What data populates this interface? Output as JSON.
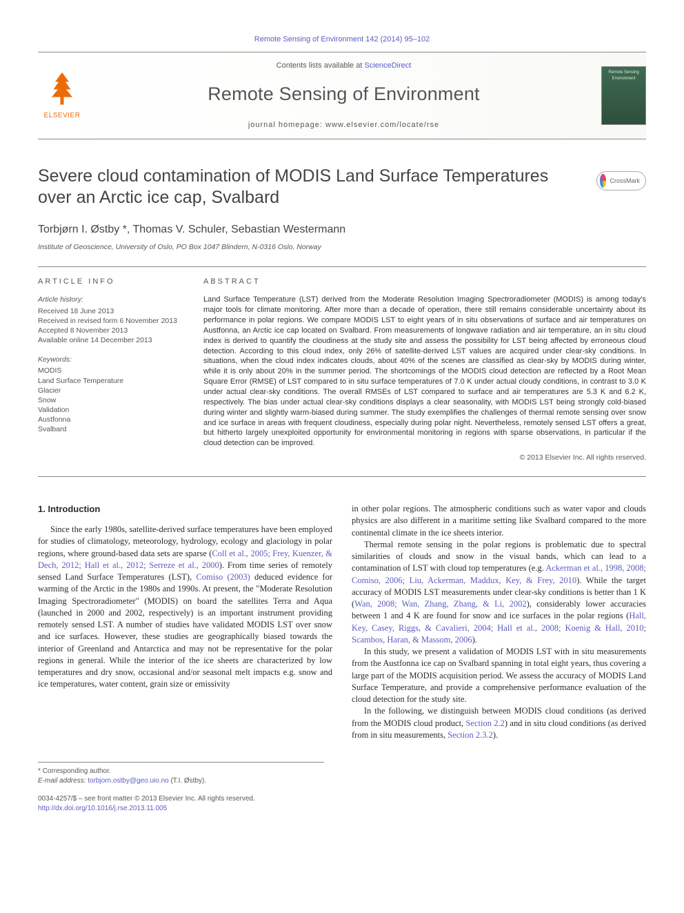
{
  "topLink": "Remote Sensing of Environment 142 (2014) 95–102",
  "header": {
    "contentsPrefix": "Contents lists available at ",
    "contentsLink": "ScienceDirect",
    "journalTitle": "Remote Sensing of Environment",
    "homepage": "journal homepage: www.elsevier.com/locate/rse",
    "publisherName": "ELSEVIER",
    "coverText": "Remote Sensing Environment"
  },
  "crossmark": "CrossMark",
  "article": {
    "title": "Severe cloud contamination of MODIS Land Surface Temperatures over an Arctic ice cap, Svalbard",
    "authors": "Torbjørn I. Østby *, Thomas V. Schuler, Sebastian Westermann",
    "affiliation": "Institute of Geoscience, University of Oslo, PO Box 1047 Blindern, N-0316 Oslo, Norway"
  },
  "articleInfo": {
    "heading": "ARTICLE INFO",
    "historyLabel": "Article history:",
    "received": "Received 18 June 2013",
    "revised": "Received in revised form 6 November 2013",
    "accepted": "Accepted 8 November 2013",
    "online": "Available online 14 December 2013",
    "keywordsLabel": "Keywords:",
    "keywords": [
      "MODIS",
      "Land Surface Temperature",
      "Glacier",
      "Snow",
      "Validation",
      "Austfonna",
      "Svalbard"
    ]
  },
  "abstract": {
    "heading": "ABSTRACT",
    "text": "Land Surface Temperature (LST) derived from the Moderate Resolution Imaging Spectroradiometer (MODIS) is among today's major tools for climate monitoring. After more than a decade of operation, there still remains considerable uncertainty about its performance in polar regions. We compare MODIS LST to eight years of in situ observations of surface and air temperatures on Austfonna, an Arctic ice cap located on Svalbard. From measurements of longwave radiation and air temperature, an in situ cloud index is derived to quantify the cloudiness at the study site and assess the possibility for LST being affected by erroneous cloud detection. According to this cloud index, only 26% of satellite-derived LST values are acquired under clear-sky conditions. In situations, when the cloud index indicates clouds, about 40% of the scenes are classified as clear-sky by MODIS during winter, while it is only about 20% in the summer period. The shortcomings of the MODIS cloud detection are reflected by a Root Mean Square Error (RMSE) of LST compared to in situ surface temperatures of 7.0 K under actual cloudy conditions, in contrast to 3.0 K under actual clear-sky conditions. The overall RMSEs of LST compared to surface and air temperatures are 5.3 K and 6.2 K, respectively. The bias under actual clear-sky conditions displays a clear seasonality, with MODIS LST being strongly cold-biased during winter and slightly warm-biased during summer. The study exemplifies the challenges of thermal remote sensing over snow and ice surface in areas with frequent cloudiness, especially during polar night. Nevertheless, remotely sensed LST offers a great, but hitherto largely unexploited opportunity for environmental monitoring in regions with sparse observations, in particular if the cloud detection can be improved.",
    "copyright": "© 2013 Elsevier Inc. All rights reserved."
  },
  "body": {
    "sectionHeading": "1. Introduction",
    "col1p1a": "Since the early 1980s, satellite-derived surface temperatures have been employed for studies of climatology, meteorology, hydrology, ecology and glaciology in polar regions, where ground-based data sets are sparse (",
    "col1ref1": "Coll et al., 2005; Frey, Kuenzer, & Dech, 2012; Hall et al., 2012; Serreze et al., 2000",
    "col1p1b": "). From time series of remotely sensed Land Surface Temperatures (LST), ",
    "col1ref2": "Comiso (2003)",
    "col1p1c": " deduced evidence for warming of the Arctic in the 1980s and 1990s. At present, the \"Moderate Resolution Imaging Spectroradiometer\" (MODIS) on board the satellites Terra and Aqua (launched in 2000 and 2002, respectively) is an important instrument providing remotely sensed LST. A number of studies have validated MODIS LST over snow and ice surfaces. However, these studies are geographically biased towards the interior of Greenland and Antarctica and may not be representative for the polar regions in general. While the interior of the ice sheets are characterized by low temperatures and dry snow, occasional and/or seasonal melt impacts e.g. snow and ice temperatures, water content, grain size or emissivity",
    "col2p1": "in other polar regions. The atmospheric conditions such as water vapor and clouds physics are also different in a maritime setting like Svalbard compared to the more continental climate in the ice sheets interior.",
    "col2p2a": "Thermal remote sensing in the polar regions is problematic due to spectral similarities of clouds and snow in the visual bands, which can lead to a contamination of LST with cloud top temperatures (e.g. ",
    "col2ref1": "Ackerman et al., 1998, 2008; Comiso, 2006; Liu, Ackerman, Maddux, Key, & Frey, 2010",
    "col2p2b": "). While the target accuracy of MODIS LST measurements under clear-sky conditions is better than 1 K (",
    "col2ref2": "Wan, 2008; Wan, Zhang, Zhang, & Li, 2002",
    "col2p2c": "), considerably lower accuracies between 1 and 4 K are found for snow and ice surfaces in the polar regions (",
    "col2ref3": "Hall, Key, Casey, Riggs, & Cavalieri, 2004; Hall et al., 2008; Koenig & Hall, 2010; Scambos, Haran, & Massom, 2006",
    "col2p2d": ").",
    "col2p3": "In this study, we present a validation of MODIS LST with in situ measurements from the Austfonna ice cap on Svalbard spanning in total eight years, thus covering a large part of the MODIS acquisition period. We assess the accuracy of MODIS Land Surface Temperature, and provide a comprehensive performance evaluation of the cloud detection for the study site.",
    "col2p4a": "In the following, we distinguish between MODIS cloud conditions (as derived from the MODIS cloud product, ",
    "col2ref4": "Section 2.2",
    "col2p4b": ") and in situ cloud conditions (as derived from in situ measurements, ",
    "col2ref5": "Section 2.3.2",
    "col2p4c": ")."
  },
  "footnotes": {
    "corr": "* Corresponding author.",
    "emailLabel": "E-mail address: ",
    "email": "torbjorn.ostby@geo.uio.no",
    "emailSuffix": " (T.I. Østby)."
  },
  "bottomMeta": {
    "line1": "0034-4257/$ – see front matter © 2013 Elsevier Inc. All rights reserved.",
    "doi": "http://dx.doi.org/10.1016/j.rse.2013.11.005"
  },
  "colors": {
    "link": "#5b5bc3",
    "publisher": "#ec6b08",
    "text": "#333333",
    "muted": "#555555",
    "rule": "#888888"
  }
}
